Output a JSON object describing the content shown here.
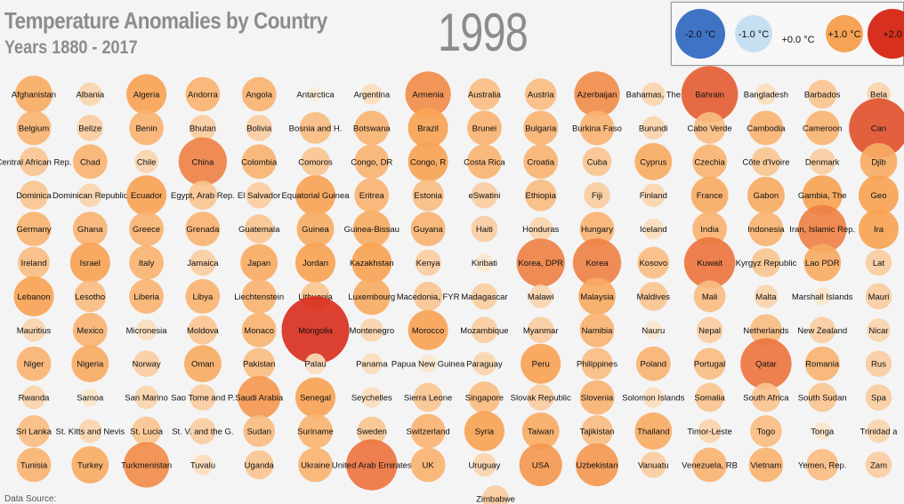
{
  "header": {
    "title": "Temperature Anomalies by Country",
    "subtitle": "Years 1880 - 2017",
    "year": "1998"
  },
  "footer": {
    "source_label": "Data Source:"
  },
  "chart_data": {
    "type": "scatter",
    "title": "Temperature Anomalies by Country",
    "subtitle": "Years 1880 - 2017",
    "current_year": "1998",
    "units": "°C",
    "color_scale": {
      "cold": "#3f73c4",
      "light": "#c6e0f2",
      "neutral": "#fbf5e8",
      "warm": "#f7a355",
      "hot": "#d8301e"
    },
    "legend": [
      {
        "label": "-2.0 °C",
        "value": -2.0
      },
      {
        "label": "-1.0 °C",
        "value": -1.0
      },
      {
        "label": "+0.0 °C",
        "value": 0.0
      },
      {
        "label": "+1.0 °C",
        "value": 1.0
      },
      {
        "label": "+2.0",
        "value": 2.0
      }
    ],
    "countries": [
      {
        "name": "Afghanistan",
        "value": 0.9
      },
      {
        "name": "Albania",
        "value": 0.4
      },
      {
        "name": "Algeria",
        "value": 1.0
      },
      {
        "name": "Andorra",
        "value": 0.8
      },
      {
        "name": "Angola",
        "value": 0.8
      },
      {
        "name": "Antarctica",
        "value": 0.1
      },
      {
        "name": "Argentina",
        "value": 0.3
      },
      {
        "name": "Armenia",
        "value": 1.2
      },
      {
        "name": "Australia",
        "value": 0.7
      },
      {
        "name": "Austria",
        "value": 0.7
      },
      {
        "name": "Azerbaijan",
        "value": 1.2
      },
      {
        "name": "Bahamas, The",
        "value": 0.4
      },
      {
        "name": "Bahrain",
        "value": 1.6
      },
      {
        "name": "Bangladesh",
        "value": 0.3
      },
      {
        "name": "Barbados",
        "value": 0.6
      },
      {
        "name": "Bela",
        "value": 0.4
      },
      {
        "name": "Belgium",
        "value": 0.8
      },
      {
        "name": "Belize",
        "value": 0.5
      },
      {
        "name": "Benin",
        "value": 0.8
      },
      {
        "name": "Bhutan",
        "value": 0.5
      },
      {
        "name": "Bolivia",
        "value": 0.5
      },
      {
        "name": "Bosnia and H.",
        "value": 0.7
      },
      {
        "name": "Botswana",
        "value": 0.8
      },
      {
        "name": "Brazil",
        "value": 1.0
      },
      {
        "name": "Brunei",
        "value": 0.8
      },
      {
        "name": "Bulgaria",
        "value": 0.8
      },
      {
        "name": "Burkina Faso",
        "value": 0.8
      },
      {
        "name": "Burundi",
        "value": 0.4
      },
      {
        "name": "Cabo Verde",
        "value": 0.7
      },
      {
        "name": "Cambodia",
        "value": 0.8
      },
      {
        "name": "Cameroon",
        "value": 0.8
      },
      {
        "name": "Can",
        "value": 1.7
      },
      {
        "name": "Central African Rep.",
        "value": 0.6
      },
      {
        "name": "Chad",
        "value": 0.8
      },
      {
        "name": "Chile",
        "value": 0.4
      },
      {
        "name": "China",
        "value": 1.3
      },
      {
        "name": "Colombia",
        "value": 0.8
      },
      {
        "name": "Comoros",
        "value": 0.6
      },
      {
        "name": "Congo, DR",
        "value": 0.8
      },
      {
        "name": "Congo, R",
        "value": 1.0
      },
      {
        "name": "Costa Rica",
        "value": 0.8
      },
      {
        "name": "Croatia",
        "value": 0.8
      },
      {
        "name": "Cuba",
        "value": 0.6
      },
      {
        "name": "Cyprus",
        "value": 0.9
      },
      {
        "name": "Czechia",
        "value": 0.8
      },
      {
        "name": "Côte d'Ivoire",
        "value": 0.6
      },
      {
        "name": "Denmark",
        "value": 0.5
      },
      {
        "name": "Djib",
        "value": 0.9
      },
      {
        "name": "Dominica",
        "value": 0.6
      },
      {
        "name": "Dominican Republic",
        "value": 0.4
      },
      {
        "name": "Ecuador",
        "value": 1.0
      },
      {
        "name": "Egypt, Arab Rep.",
        "value": 0.6
      },
      {
        "name": "El Salvador",
        "value": 0.5
      },
      {
        "name": "Equatorial Guinea",
        "value": 1.0
      },
      {
        "name": "Eritrea",
        "value": 0.8
      },
      {
        "name": "Estonia",
        "value": 0.7
      },
      {
        "name": "eSwatini",
        "value": 0.5
      },
      {
        "name": "Ethiopia",
        "value": 0.7
      },
      {
        "name": "Fiji",
        "value": 0.5
      },
      {
        "name": "Finland",
        "value": 0.4
      },
      {
        "name": "France",
        "value": 0.9
      },
      {
        "name": "Gabon",
        "value": 0.9
      },
      {
        "name": "Gambia, The",
        "value": 1.0
      },
      {
        "name": "Geo",
        "value": 1.0
      },
      {
        "name": "Germany",
        "value": 0.8
      },
      {
        "name": "Ghana",
        "value": 0.8
      },
      {
        "name": "Greece",
        "value": 0.8
      },
      {
        "name": "Grenada",
        "value": 0.8
      },
      {
        "name": "Guatemala",
        "value": 0.6
      },
      {
        "name": "Guinea",
        "value": 0.9
      },
      {
        "name": "Guinea-Bissau",
        "value": 0.9
      },
      {
        "name": "Guyana",
        "value": 0.8
      },
      {
        "name": "Haiti",
        "value": 0.5
      },
      {
        "name": "Honduras",
        "value": 0.4
      },
      {
        "name": "Hungary",
        "value": 0.8
      },
      {
        "name": "Iceland",
        "value": 0.3
      },
      {
        "name": "India",
        "value": 0.8
      },
      {
        "name": "Indonesia",
        "value": 0.8
      },
      {
        "name": "Iran, Islamic Rep.",
        "value": 1.3
      },
      {
        "name": "Ira",
        "value": 1.0
      },
      {
        "name": "Ireland",
        "value": 0.7
      },
      {
        "name": "Israel",
        "value": 1.0
      },
      {
        "name": "Italy",
        "value": 0.8
      },
      {
        "name": "Jamaica",
        "value": 0.5
      },
      {
        "name": "Japan",
        "value": 0.9
      },
      {
        "name": "Jordan",
        "value": 1.0
      },
      {
        "name": "Kazakhstan",
        "value": 1.0
      },
      {
        "name": "Kenya",
        "value": 0.5
      },
      {
        "name": "Kiribati",
        "value": 0.2
      },
      {
        "name": "Korea, DPR",
        "value": 1.3
      },
      {
        "name": "Korea",
        "value": 1.3
      },
      {
        "name": "Kosovo",
        "value": 0.7
      },
      {
        "name": "Kuwait",
        "value": 1.4
      },
      {
        "name": "Kyrgyz Republic",
        "value": 0.6
      },
      {
        "name": "Lao PDR",
        "value": 0.9
      },
      {
        "name": "Lat",
        "value": 0.5
      },
      {
        "name": "Lebanon",
        "value": 1.0
      },
      {
        "name": "Lesotho",
        "value": 0.7
      },
      {
        "name": "Liberia",
        "value": 0.8
      },
      {
        "name": "Libya",
        "value": 0.8
      },
      {
        "name": "Liechtenstein",
        "value": 0.8
      },
      {
        "name": "Lithuania",
        "value": 0.6
      },
      {
        "name": "Luxembourg",
        "value": 0.9
      },
      {
        "name": "Macedonia, FYR",
        "value": 0.6
      },
      {
        "name": "Madagascar",
        "value": 0.5
      },
      {
        "name": "Malawi",
        "value": 0.4
      },
      {
        "name": "Malaysia",
        "value": 0.9
      },
      {
        "name": "Maldives",
        "value": 0.6
      },
      {
        "name": "Mali",
        "value": 0.7
      },
      {
        "name": "Malta",
        "value": 0.4
      },
      {
        "name": "Marshall Islands",
        "value": 0.2
      },
      {
        "name": "Mauri",
        "value": 0.5
      },
      {
        "name": "Mauritius",
        "value": 0.4
      },
      {
        "name": "Mexico",
        "value": 0.8
      },
      {
        "name": "Micronesia",
        "value": 0.3
      },
      {
        "name": "Moldova",
        "value": 0.6
      },
      {
        "name": "Monaco",
        "value": 0.8
      },
      {
        "name": "Mongolia",
        "value": 2.0
      },
      {
        "name": "Montenegro",
        "value": 0.4
      },
      {
        "name": "Morocco",
        "value": 1.0
      },
      {
        "name": "Mozambique",
        "value": 0.5
      },
      {
        "name": "Myanmar",
        "value": 0.5
      },
      {
        "name": "Namibia",
        "value": 0.8
      },
      {
        "name": "Nauru",
        "value": 0.2
      },
      {
        "name": "Nepal",
        "value": 0.5
      },
      {
        "name": "Netherlands",
        "value": 0.7
      },
      {
        "name": "New Zealand",
        "value": 0.5
      },
      {
        "name": "Nicar",
        "value": 0.4
      },
      {
        "name": "Niger",
        "value": 0.8
      },
      {
        "name": "Nigeria",
        "value": 0.9
      },
      {
        "name": "Norway",
        "value": 0.5
      },
      {
        "name": "Oman",
        "value": 0.9
      },
      {
        "name": "Pakistan",
        "value": 0.7
      },
      {
        "name": "Palau",
        "value": 0.3
      },
      {
        "name": "Panama",
        "value": 0.3
      },
      {
        "name": "Papua New Guinea",
        "value": 0.2
      },
      {
        "name": "Paraguay",
        "value": 0.4
      },
      {
        "name": "Peru",
        "value": 1.0
      },
      {
        "name": "Philippines",
        "value": 0.7
      },
      {
        "name": "Poland",
        "value": 0.8
      },
      {
        "name": "Portugal",
        "value": 0.7
      },
      {
        "name": "Qatar",
        "value": 1.4
      },
      {
        "name": "Romania",
        "value": 0.8
      },
      {
        "name": "Rus",
        "value": 0.5
      },
      {
        "name": "Rwanda",
        "value": 0.4
      },
      {
        "name": "Samoa",
        "value": 0.2
      },
      {
        "name": "San Marino",
        "value": 0.4
      },
      {
        "name": "Sao Tome and P.",
        "value": 0.5
      },
      {
        "name": "Saudi Arabia",
        "value": 1.1
      },
      {
        "name": "Senegal",
        "value": 1.0
      },
      {
        "name": "Seychelles",
        "value": 0.3
      },
      {
        "name": "Sierra Leone",
        "value": 0.6
      },
      {
        "name": "Singapore",
        "value": 0.7
      },
      {
        "name": "Slovak Republic",
        "value": 0.5
      },
      {
        "name": "Slovenia",
        "value": 0.8
      },
      {
        "name": "Solomon Islands",
        "value": 0.3
      },
      {
        "name": "Somalia",
        "value": 0.6
      },
      {
        "name": "South Africa",
        "value": 0.6
      },
      {
        "name": "South Sudan",
        "value": 0.6
      },
      {
        "name": "Spa",
        "value": 0.5
      },
      {
        "name": "Sri Lanka",
        "value": 0.7
      },
      {
        "name": "St. Kitts and Nevis",
        "value": 0.4
      },
      {
        "name": "St. Lucia",
        "value": 0.6
      },
      {
        "name": "St. V. and the G.",
        "value": 0.5
      },
      {
        "name": "Sudan",
        "value": 0.7
      },
      {
        "name": "Suriname",
        "value": 0.8
      },
      {
        "name": "Sweden",
        "value": 0.6
      },
      {
        "name": "Switzerland",
        "value": 0.8
      },
      {
        "name": "Syria",
        "value": 1.0
      },
      {
        "name": "Taiwan",
        "value": 0.9
      },
      {
        "name": "Tajikistan",
        "value": 0.7
      },
      {
        "name": "Thailand",
        "value": 0.9
      },
      {
        "name": "Timor-Leste",
        "value": 0.4
      },
      {
        "name": "Togo",
        "value": 0.7
      },
      {
        "name": "Tonga",
        "value": 0.2
      },
      {
        "name": "Trinidad a",
        "value": 0.4
      },
      {
        "name": "Tunisia",
        "value": 0.8
      },
      {
        "name": "Turkey",
        "value": 0.9
      },
      {
        "name": "Turkmenistan",
        "value": 1.2
      },
      {
        "name": "Tuvalu",
        "value": 0.3
      },
      {
        "name": "Uganda",
        "value": 0.6
      },
      {
        "name": "Ukraine",
        "value": 0.8
      },
      {
        "name": "United Arab Emirates",
        "value": 1.4
      },
      {
        "name": "UK",
        "value": 0.8
      },
      {
        "name": "Uruguay",
        "value": 0.4
      },
      {
        "name": "USA",
        "value": 1.1
      },
      {
        "name": "Uzbekistan",
        "value": 1.1
      },
      {
        "name": "Vanuatu",
        "value": 0.5
      },
      {
        "name": "Venezuela, RB",
        "value": 0.8
      },
      {
        "name": "Vietnam",
        "value": 0.8
      },
      {
        "name": "Yemen, Rep.",
        "value": 0.7
      },
      {
        "name": "Zam",
        "value": 0.5
      },
      {
        "name": "Zimbabwe",
        "value": 0.5
      }
    ]
  }
}
